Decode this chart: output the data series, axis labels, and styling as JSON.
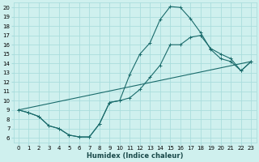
{
  "xlabel": "Humidex (Indice chaleur)",
  "bg_color": "#cff0ee",
  "grid_color": "#aadddd",
  "line_color": "#1a6b6b",
  "xlim": [
    -0.5,
    23.5
  ],
  "ylim": [
    5.5,
    20.5
  ],
  "yticks": [
    6,
    7,
    8,
    9,
    10,
    11,
    12,
    13,
    14,
    15,
    16,
    17,
    18,
    19,
    20
  ],
  "xticks": [
    0,
    1,
    2,
    3,
    4,
    5,
    6,
    7,
    8,
    9,
    10,
    11,
    12,
    13,
    14,
    15,
    16,
    17,
    18,
    19,
    20,
    21,
    22,
    23
  ],
  "line1_x": [
    0,
    1,
    2,
    3,
    4,
    5,
    6,
    7,
    8,
    9,
    10,
    11,
    12,
    13,
    14,
    15,
    16,
    17,
    18,
    19,
    20,
    21,
    22,
    23
  ],
  "line1_y": [
    9.0,
    8.7,
    8.3,
    7.3,
    7.0,
    6.3,
    6.1,
    6.1,
    7.5,
    9.8,
    10.0,
    12.8,
    15.0,
    16.2,
    18.7,
    20.1,
    20.0,
    18.8,
    17.3,
    15.5,
    14.5,
    14.2,
    13.2,
    14.2
  ],
  "line2_x": [
    0,
    1,
    2,
    3,
    4,
    5,
    6,
    7,
    8,
    9,
    10,
    11,
    12,
    13,
    14,
    15,
    16,
    17,
    18,
    19,
    20,
    21,
    22,
    23
  ],
  "line2_y": [
    9.0,
    8.7,
    8.3,
    7.3,
    7.0,
    6.3,
    6.1,
    6.1,
    7.5,
    9.8,
    10.0,
    10.3,
    11.2,
    12.5,
    13.8,
    16.0,
    16.0,
    16.8,
    17.0,
    15.6,
    15.0,
    14.5,
    13.2,
    14.2
  ],
  "line3_x": [
    0,
    23
  ],
  "line3_y": [
    9.0,
    14.2
  ],
  "tick_fontsize": 5.0,
  "xlabel_fontsize": 6.0
}
